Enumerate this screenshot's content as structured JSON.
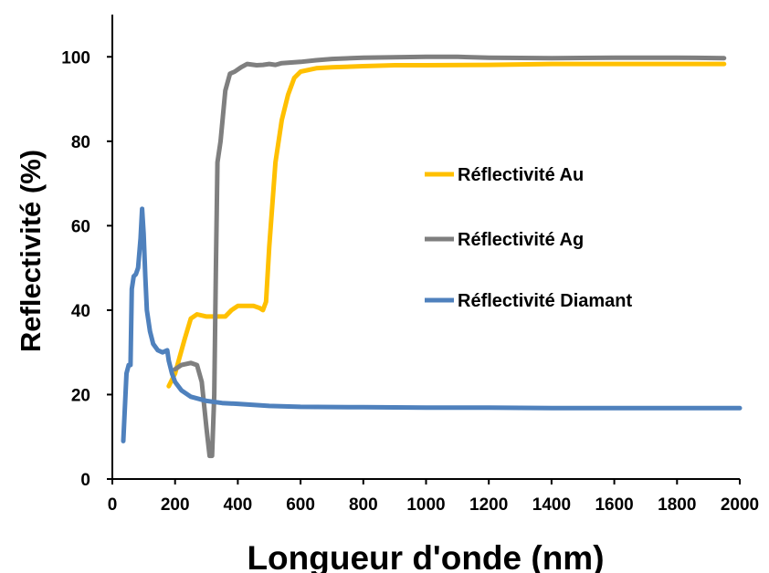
{
  "chart_data": {
    "type": "line",
    "title": "",
    "xlabel": "Longueur d'onde (nm)",
    "ylabel": "Reflectivité (%)",
    "xlim": [
      0,
      2000
    ],
    "ylim": [
      0,
      110
    ],
    "xticks": [
      0,
      200,
      400,
      600,
      800,
      1000,
      1200,
      1400,
      1600,
      1800,
      2000
    ],
    "yticks": [
      0,
      20,
      40,
      60,
      80,
      100
    ],
    "grid": false,
    "legend_position": "right",
    "series": [
      {
        "name": "Réflectivité Au",
        "color": "#FFC000",
        "points": [
          [
            180,
            22
          ],
          [
            200,
            25
          ],
          [
            230,
            33
          ],
          [
            250,
            38
          ],
          [
            270,
            39
          ],
          [
            300,
            38.5
          ],
          [
            340,
            38.5
          ],
          [
            360,
            38.5
          ],
          [
            380,
            40
          ],
          [
            400,
            41
          ],
          [
            420,
            41
          ],
          [
            450,
            41
          ],
          [
            470,
            40.5
          ],
          [
            480,
            40
          ],
          [
            490,
            42
          ],
          [
            500,
            55
          ],
          [
            520,
            75
          ],
          [
            540,
            85
          ],
          [
            560,
            91
          ],
          [
            580,
            95
          ],
          [
            600,
            96.5
          ],
          [
            650,
            97.3
          ],
          [
            700,
            97.5
          ],
          [
            800,
            97.8
          ],
          [
            900,
            98
          ],
          [
            1000,
            98
          ],
          [
            1200,
            98.1
          ],
          [
            1400,
            98.3
          ],
          [
            1600,
            98.3
          ],
          [
            1800,
            98.3
          ],
          [
            1950,
            98.3
          ]
        ]
      },
      {
        "name": "Réflectivité Ag",
        "color": "#7F7F7F",
        "points": [
          [
            200,
            26
          ],
          [
            220,
            27
          ],
          [
            250,
            27.5
          ],
          [
            270,
            27
          ],
          [
            285,
            23
          ],
          [
            300,
            12
          ],
          [
            310,
            5.5
          ],
          [
            318,
            5.5
          ],
          [
            325,
            20
          ],
          [
            330,
            50
          ],
          [
            335,
            75
          ],
          [
            345,
            80
          ],
          [
            360,
            92
          ],
          [
            375,
            96
          ],
          [
            390,
            96.5
          ],
          [
            410,
            97.5
          ],
          [
            430,
            98.3
          ],
          [
            460,
            98
          ],
          [
            480,
            98.1
          ],
          [
            500,
            98.3
          ],
          [
            520,
            98.1
          ],
          [
            540,
            98.5
          ],
          [
            600,
            98.8
          ],
          [
            650,
            99.2
          ],
          [
            700,
            99.5
          ],
          [
            800,
            99.8
          ],
          [
            1000,
            100
          ],
          [
            1100,
            100
          ],
          [
            1200,
            99.8
          ],
          [
            1400,
            99.7
          ],
          [
            1600,
            99.8
          ],
          [
            1800,
            99.8
          ],
          [
            1950,
            99.7
          ]
        ]
      },
      {
        "name": "Réflectivité Diamant",
        "color": "#4F81BD",
        "points": [
          [
            35,
            9
          ],
          [
            45,
            25
          ],
          [
            52,
            27
          ],
          [
            58,
            27
          ],
          [
            62,
            45
          ],
          [
            68,
            48
          ],
          [
            75,
            48.5
          ],
          [
            82,
            50
          ],
          [
            90,
            57
          ],
          [
            95,
            64
          ],
          [
            100,
            58
          ],
          [
            105,
            48
          ],
          [
            110,
            40
          ],
          [
            120,
            35
          ],
          [
            130,
            32
          ],
          [
            145,
            30.5
          ],
          [
            160,
            30
          ],
          [
            175,
            30.5
          ],
          [
            180,
            28
          ],
          [
            190,
            25
          ],
          [
            200,
            23
          ],
          [
            220,
            21
          ],
          [
            250,
            19.5
          ],
          [
            300,
            18.5
          ],
          [
            350,
            18
          ],
          [
            400,
            17.8
          ],
          [
            500,
            17.3
          ],
          [
            600,
            17.1
          ],
          [
            800,
            17
          ],
          [
            1000,
            16.9
          ],
          [
            1200,
            16.9
          ],
          [
            1400,
            16.8
          ],
          [
            1600,
            16.8
          ],
          [
            1800,
            16.8
          ],
          [
            2000,
            16.8
          ]
        ]
      }
    ]
  }
}
